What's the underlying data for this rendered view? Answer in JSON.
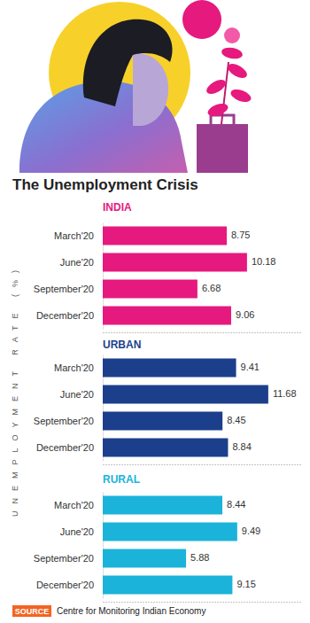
{
  "title": "The Unemployment Crisis",
  "axis_label": "UNEMPLOYMENT RATE (%)",
  "source": {
    "label": "SOURCE",
    "text": "Centre for Monitoring Indian Economy"
  },
  "chart_data": [
    {
      "type": "bar",
      "orientation": "horizontal",
      "title": "INDIA",
      "categories": [
        "March'20",
        "June'20",
        "September'20",
        "December'20"
      ],
      "values": [
        8.75,
        10.18,
        6.68,
        9.06
      ],
      "color": "#e5197e",
      "xlim": [
        0,
        14
      ],
      "data_labels": true,
      "tick_labels": "y"
    },
    {
      "type": "bar",
      "orientation": "horizontal",
      "title": "URBAN",
      "categories": [
        "March'20",
        "June'20",
        "September'20",
        "December'20"
      ],
      "values": [
        9.41,
        11.68,
        8.45,
        8.84
      ],
      "color": "#1c3f8c",
      "xlim": [
        0,
        14
      ],
      "data_labels": true,
      "tick_labels": "y"
    },
    {
      "type": "bar",
      "orientation": "horizontal",
      "title": "RURAL",
      "categories": [
        "March'20",
        "June'20",
        "September'20",
        "December'20"
      ],
      "values": [
        8.44,
        9.49,
        5.88,
        9.15
      ],
      "color": "#1bb3d9",
      "xlim": [
        0,
        14
      ],
      "data_labels": true,
      "tick_labels": "y"
    }
  ]
}
